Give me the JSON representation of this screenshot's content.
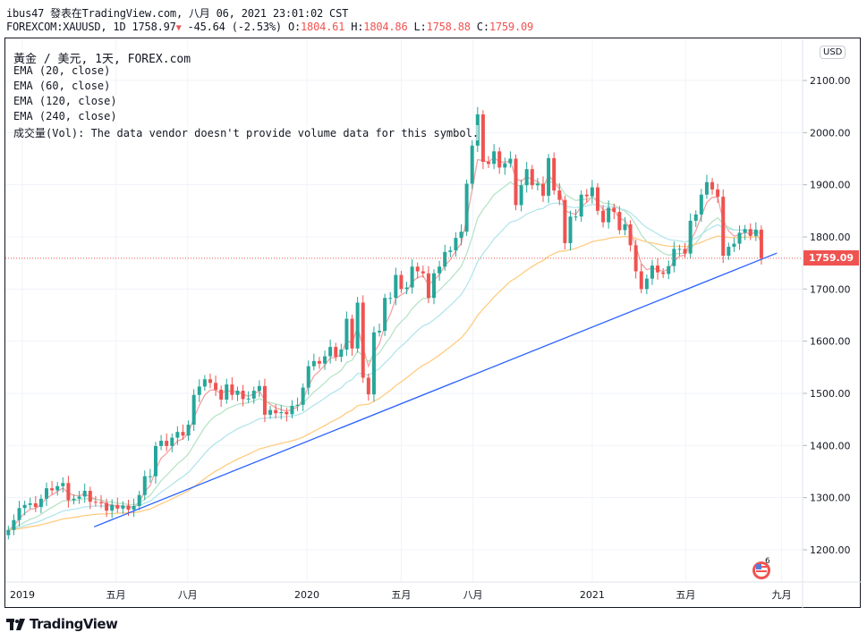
{
  "header": {
    "publish_line": "ibus47 發表在TradingView.com, 八月 06, 2021 23:01:02 CST",
    "symbol": "FOREXCOM:XAUUSD, 1D",
    "last": "1758.97",
    "change": "-45.64 (-2.53%)",
    "o_label": "O:",
    "o": "1804.61",
    "h_label": "H:",
    "h": "1804.86",
    "l_label": "L:",
    "l": "1758.88",
    "c_label": "C:",
    "c": "1759.09"
  },
  "legend": {
    "title": "黃金 / 美元, 1天, FOREX.com",
    "ema20": "EMA (20, close)",
    "ema60": "EMA (60, close)",
    "ema120": "EMA (120, close)",
    "ema240": "EMA (240, close)",
    "volume": "成交量(Vol): The data vendor doesn't provide volume data for this symbol."
  },
  "currency": "USD",
  "current_price_label": "1759.09",
  "event_flag_count": "6",
  "brand": "TradingView",
  "colors": {
    "up": "#26a69a",
    "down": "#ef5350",
    "ema20": "#f4a3a3",
    "ema60": "#b7e4c7",
    "ema120": "#b3e5ec",
    "ema240": "#ffcc80",
    "trendline": "#2962ff",
    "grid": "#f0f3fa"
  },
  "chart_data": {
    "type": "candlestick",
    "title": "黃金 / 美元, 1天, FOREX.com",
    "interval_note": "approximate weekly closes read from daily chart",
    "start_date": "2018-12-14",
    "step_days": 7,
    "closes": [
      1238,
      1257,
      1280,
      1286,
      1289,
      1282,
      1298,
      1318,
      1314,
      1322,
      1328,
      1295,
      1298,
      1302,
      1313,
      1292,
      1291,
      1290,
      1275,
      1286,
      1279,
      1285,
      1277,
      1284,
      1305,
      1341,
      1341,
      1399,
      1409,
      1399,
      1415,
      1426,
      1419,
      1440,
      1497,
      1513,
      1527,
      1520,
      1507,
      1488,
      1517,
      1497,
      1505,
      1489,
      1490,
      1505,
      1514,
      1459,
      1468,
      1462,
      1464,
      1460,
      1476,
      1478,
      1511,
      1552,
      1562,
      1557,
      1571,
      1589,
      1570,
      1584,
      1643,
      1586,
      1674,
      1530,
      1498,
      1617,
      1620,
      1683,
      1683,
      1727,
      1700,
      1703,
      1743,
      1734,
      1730,
      1683,
      1730,
      1743,
      1771,
      1774,
      1798,
      1810,
      1902,
      1975,
      2035,
      1944,
      1940,
      1964,
      1933,
      1941,
      1950,
      1861,
      1899,
      1930,
      1899,
      1902,
      1879,
      1951,
      1889,
      1871,
      1788,
      1839,
      1839,
      1881,
      1878,
      1895,
      1850,
      1828,
      1856,
      1848,
      1813,
      1824,
      1784,
      1734,
      1700,
      1720,
      1745,
      1732,
      1729,
      1744,
      1777,
      1777,
      1768,
      1831,
      1843,
      1881,
      1905,
      1891,
      1877,
      1764,
      1781,
      1787,
      1808,
      1815,
      1802,
      1814,
      1759
    ],
    "ema_periods": [
      20,
      60,
      120,
      240
    ],
    "trendline": {
      "from": {
        "date": "2019-04-03",
        "price": 1244
      },
      "to": {
        "date": "2021-08-26",
        "price": 1769
      }
    },
    "current_price": 1759.09,
    "y_ticks": [
      "1200.00",
      "1300.00",
      "1400.00",
      "1500.00",
      "1600.00",
      "1700.00",
      "1800.00",
      "1900.00",
      "2000.00",
      "2100.00"
    ],
    "y_tick_values": [
      1200,
      1300,
      1400,
      1500,
      1600,
      1700,
      1800,
      1900,
      2000,
      2100
    ],
    "x_ticks": [
      {
        "label": "2019",
        "date": "2019-01-01"
      },
      {
        "label": "五月",
        "date": "2019-05-01"
      },
      {
        "label": "八月",
        "date": "2019-08-01"
      },
      {
        "label": "2020",
        "date": "2020-01-01"
      },
      {
        "label": "五月",
        "date": "2020-05-01"
      },
      {
        "label": "八月",
        "date": "2020-08-01"
      },
      {
        "label": "2021",
        "date": "2021-01-01"
      },
      {
        "label": "五月",
        "date": "2021-05-01"
      },
      {
        "label": "九月",
        "date": "2021-09-01"
      }
    ],
    "ylim": [
      1100,
      2180
    ],
    "grid": true
  }
}
